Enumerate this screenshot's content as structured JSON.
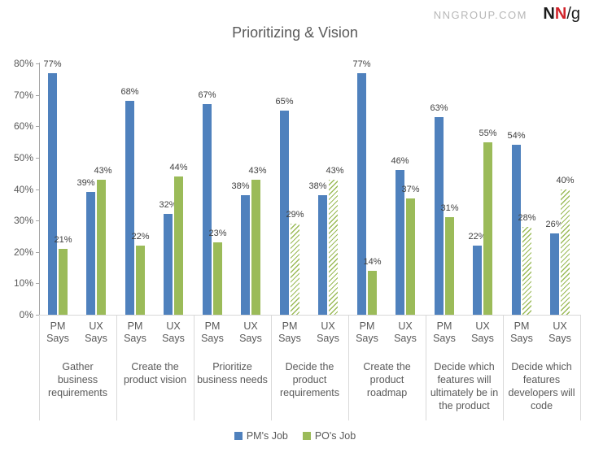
{
  "header": {
    "site_url": "NNGROUP.COM",
    "logo": {
      "n1": "N",
      "n2": "N",
      "slash": "/",
      "g": "g"
    }
  },
  "colors": {
    "pm_job_blue": "#4F81BD",
    "po_job_green": "#9BBB59",
    "logo_red": "#D2232A",
    "title_gray": "#595959"
  },
  "chart_data": {
    "type": "bar",
    "title": "Prioritizing & Vision",
    "xlabel": "",
    "ylabel": "",
    "ylim": [
      0,
      80
    ],
    "ytick_step": 10,
    "yticks": [
      "0%",
      "10%",
      "20%",
      "30%",
      "40%",
      "50%",
      "60%",
      "70%",
      "80%"
    ],
    "grid": false,
    "legend_position": "bottom",
    "legend": [
      {
        "name": "PM's Job",
        "color": "#4F81BD"
      },
      {
        "name": "PO's Job",
        "color": "#9BBB59"
      }
    ],
    "value_suffix": "%",
    "hatched_meaning": "bar drawn with diagonal green hatching instead of solid fill",
    "groups": [
      {
        "category": "Gather business requirements",
        "clusters": [
          {
            "label": "PM Says",
            "bars": [
              {
                "series": "PM's Job",
                "value": 77,
                "hatched": false
              },
              {
                "series": "PO's Job",
                "value": 21,
                "hatched": false
              }
            ]
          },
          {
            "label": "UX Says",
            "bars": [
              {
                "series": "PM's Job",
                "value": 39,
                "hatched": false
              },
              {
                "series": "PO's Job",
                "value": 43,
                "hatched": false
              }
            ]
          }
        ]
      },
      {
        "category": "Create the product vision",
        "clusters": [
          {
            "label": "PM Says",
            "bars": [
              {
                "series": "PM's Job",
                "value": 68,
                "hatched": false
              },
              {
                "series": "PO's Job",
                "value": 22,
                "hatched": false
              }
            ]
          },
          {
            "label": "UX Says",
            "bars": [
              {
                "series": "PM's Job",
                "value": 32,
                "hatched": false
              },
              {
                "series": "PO's Job",
                "value": 44,
                "hatched": false
              }
            ]
          }
        ]
      },
      {
        "category": "Prioritize business needs",
        "clusters": [
          {
            "label": "PM Says",
            "bars": [
              {
                "series": "PM's Job",
                "value": 67,
                "hatched": false
              },
              {
                "series": "PO's Job",
                "value": 23,
                "hatched": false
              }
            ]
          },
          {
            "label": "UX Says",
            "bars": [
              {
                "series": "PM's Job",
                "value": 38,
                "hatched": false
              },
              {
                "series": "PO's Job",
                "value": 43,
                "hatched": false
              }
            ]
          }
        ]
      },
      {
        "category": "Decide the product requirements",
        "clusters": [
          {
            "label": "PM Says",
            "bars": [
              {
                "series": "PM's Job",
                "value": 65,
                "hatched": false
              },
              {
                "series": "PO's Job",
                "value": 29,
                "hatched": true
              }
            ]
          },
          {
            "label": "UX Says",
            "bars": [
              {
                "series": "PM's Job",
                "value": 38,
                "hatched": false
              },
              {
                "series": "PO's Job",
                "value": 43,
                "hatched": true
              }
            ]
          }
        ]
      },
      {
        "category": "Create the product roadmap",
        "clusters": [
          {
            "label": "PM Says",
            "bars": [
              {
                "series": "PM's Job",
                "value": 77,
                "hatched": false
              },
              {
                "series": "PO's Job",
                "value": 14,
                "hatched": false
              }
            ]
          },
          {
            "label": "UX Says",
            "bars": [
              {
                "series": "PM's Job",
                "value": 46,
                "hatched": false
              },
              {
                "series": "PO's Job",
                "value": 37,
                "hatched": false
              }
            ]
          }
        ]
      },
      {
        "category": "Decide which features will ultimately be in the product",
        "clusters": [
          {
            "label": "PM Says",
            "bars": [
              {
                "series": "PM's Job",
                "value": 63,
                "hatched": false
              },
              {
                "series": "PO's Job",
                "value": 31,
                "hatched": false
              }
            ]
          },
          {
            "label": "UX Says",
            "bars": [
              {
                "series": "PM's Job",
                "value": 22,
                "hatched": false
              },
              {
                "series": "PO's Job",
                "value": 55,
                "hatched": false
              }
            ]
          }
        ]
      },
      {
        "category": "Decide which features developers will code",
        "clusters": [
          {
            "label": "PM Says",
            "bars": [
              {
                "series": "PM's Job",
                "value": 54,
                "hatched": false
              },
              {
                "series": "PO's Job",
                "value": 28,
                "hatched": true
              }
            ]
          },
          {
            "label": "UX Says",
            "bars": [
              {
                "series": "PM's Job",
                "value": 26,
                "hatched": false
              },
              {
                "series": "PO's Job",
                "value": 40,
                "hatched": true
              }
            ]
          }
        ]
      }
    ]
  }
}
